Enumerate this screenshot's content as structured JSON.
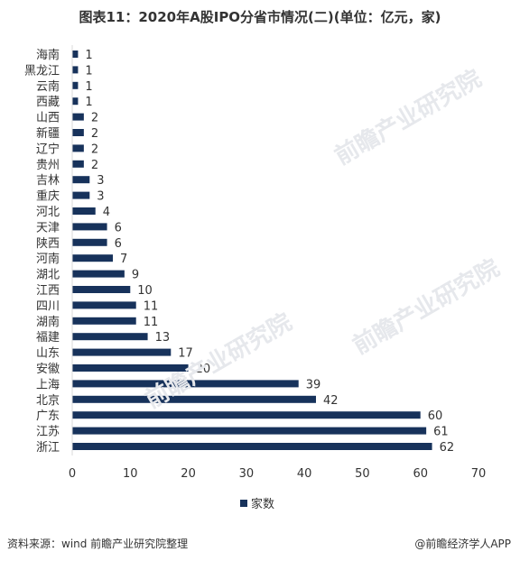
{
  "title": "图表11：2020年A股IPO分省市情况(二)(单位：亿元，家)",
  "footer": {
    "source": "资料来源：wind 前瞻产业研究院整理",
    "brand": "@前瞻经济学人APP"
  },
  "watermark": "前瞻产业研究院",
  "colors": {
    "bar": "#17325b",
    "axis": "#d9d9d9",
    "text": "#333333"
  },
  "chart_data": {
    "type": "bar",
    "orientation": "horizontal",
    "categories": [
      "海南",
      "黑龙江",
      "云南",
      "西藏",
      "山西",
      "新疆",
      "辽宁",
      "贵州",
      "吉林",
      "重庆",
      "河北",
      "天津",
      "陕西",
      "河南",
      "湖北",
      "江西",
      "四川",
      "湖南",
      "福建",
      "山东",
      "安徽",
      "上海",
      "北京",
      "广东",
      "江苏",
      "浙江"
    ],
    "series": [
      {
        "name": "家数",
        "values": [
          1,
          1,
          1,
          1,
          2,
          2,
          2,
          2,
          3,
          3,
          4,
          6,
          6,
          7,
          9,
          10,
          11,
          11,
          13,
          17,
          20,
          39,
          42,
          60,
          61,
          62
        ]
      }
    ],
    "xlim": [
      0,
      70
    ],
    "xticks": [
      0,
      10,
      20,
      30,
      40,
      50,
      60,
      70
    ],
    "grid": false,
    "legend": "bottom"
  }
}
